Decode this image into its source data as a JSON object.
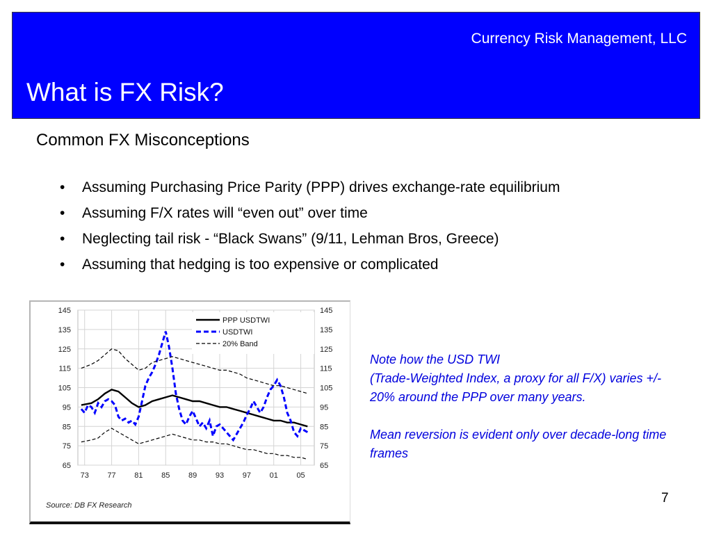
{
  "header": {
    "company": "Currency Risk Management, LLC",
    "title": "What is FX Risk?"
  },
  "subtitle": "Common FX Misconceptions",
  "bullets": [
    "Assuming Purchasing Price Parity (PPP) drives exchange-rate equilibrium",
    "Assuming F/X rates will “even out” over time",
    "Neglecting tail risk - “Black Swans” (9/11, Lehman Bros, Greece)",
    "Assuming that hedging is too expensive or complicated"
  ],
  "note": {
    "line1": "Note how the USD TWI",
    "line2": "(Trade-Weighted Index, a proxy for all F/X) varies +/- 20% around the PPP over many years.",
    "line3": "Mean reversion is evident only over decade-long time frames"
  },
  "page_number": "7",
  "colors": {
    "banner": "#0000ff",
    "usdtwi": "#0000ff",
    "note_text": "#0000dd"
  },
  "chart_data": {
    "type": "line",
    "source": "Source: DB FX Research",
    "x_ticks": [
      "73",
      "77",
      "81",
      "85",
      "89",
      "93",
      "97",
      "01",
      "05"
    ],
    "x_range": [
      1972,
      2007
    ],
    "y_ticks": [
      65,
      75,
      85,
      95,
      105,
      115,
      125,
      135,
      145
    ],
    "y_ticks_right": [
      65,
      75,
      85,
      95,
      105,
      115,
      125,
      135,
      145
    ],
    "ylim": [
      65,
      145
    ],
    "grid": true,
    "legend_position": "top-right",
    "series": [
      {
        "name": "PPP USDTWI",
        "style": "solid",
        "color": "#000000",
        "points": [
          [
            1972.5,
            96
          ],
          [
            1974,
            97
          ],
          [
            1975,
            99
          ],
          [
            1976,
            102
          ],
          [
            1977,
            104
          ],
          [
            1978,
            103
          ],
          [
            1979,
            100
          ],
          [
            1980,
            97
          ],
          [
            1981,
            95
          ],
          [
            1982,
            96
          ],
          [
            1983,
            98
          ],
          [
            1984,
            99
          ],
          [
            1985,
            100
          ],
          [
            1986,
            101
          ],
          [
            1987,
            100
          ],
          [
            1988,
            99
          ],
          [
            1989,
            98
          ],
          [
            1990,
            98
          ],
          [
            1991,
            97
          ],
          [
            1992,
            96
          ],
          [
            1993,
            95
          ],
          [
            1994,
            95
          ],
          [
            1995,
            94
          ],
          [
            1996,
            93
          ],
          [
            1997,
            92
          ],
          [
            1998,
            91
          ],
          [
            1999,
            90
          ],
          [
            2000,
            89
          ],
          [
            2001,
            88
          ],
          [
            2002,
            88
          ],
          [
            2003,
            87
          ],
          [
            2004,
            87
          ],
          [
            2005,
            86
          ],
          [
            2006,
            85
          ]
        ]
      },
      {
        "name": "USDTWI",
        "style": "dashed",
        "color": "#0000ff",
        "points": [
          [
            1972.5,
            94
          ],
          [
            1973,
            92
          ],
          [
            1973.5,
            96
          ],
          [
            1974,
            95
          ],
          [
            1974.5,
            92
          ],
          [
            1975,
            97
          ],
          [
            1975.5,
            95
          ],
          [
            1976,
            98
          ],
          [
            1976.5,
            99
          ],
          [
            1977,
            98
          ],
          [
            1977.5,
            96
          ],
          [
            1978,
            90
          ],
          [
            1978.5,
            88
          ],
          [
            1979,
            89
          ],
          [
            1979.5,
            87
          ],
          [
            1980,
            88
          ],
          [
            1980.5,
            86
          ],
          [
            1981,
            90
          ],
          [
            1981.5,
            98
          ],
          [
            1982,
            106
          ],
          [
            1982.5,
            110
          ],
          [
            1983,
            113
          ],
          [
            1983.5,
            117
          ],
          [
            1984,
            122
          ],
          [
            1984.5,
            128
          ],
          [
            1985,
            134
          ],
          [
            1985.5,
            126
          ],
          [
            1986,
            115
          ],
          [
            1986.5,
            102
          ],
          [
            1987,
            94
          ],
          [
            1987.5,
            88
          ],
          [
            1988,
            86
          ],
          [
            1988.5,
            90
          ],
          [
            1989,
            93
          ],
          [
            1989.5,
            89
          ],
          [
            1990,
            85
          ],
          [
            1990.5,
            87
          ],
          [
            1991,
            84
          ],
          [
            1991.5,
            88
          ],
          [
            1992,
            80
          ],
          [
            1992.5,
            85
          ],
          [
            1993,
            86
          ],
          [
            1993.5,
            84
          ],
          [
            1994,
            82
          ],
          [
            1994.5,
            80
          ],
          [
            1995,
            78
          ],
          [
            1995.5,
            81
          ],
          [
            1996,
            84
          ],
          [
            1996.5,
            87
          ],
          [
            1997,
            91
          ],
          [
            1997.5,
            94
          ],
          [
            1998,
            98
          ],
          [
            1998.5,
            95
          ],
          [
            1999,
            92
          ],
          [
            1999.5,
            95
          ],
          [
            2000,
            100
          ],
          [
            2000.5,
            104
          ],
          [
            2001,
            106
          ],
          [
            2001.5,
            109
          ],
          [
            2002,
            106
          ],
          [
            2002.5,
            100
          ],
          [
            2003,
            92
          ],
          [
            2003.5,
            88
          ],
          [
            2004,
            82
          ],
          [
            2004.5,
            80
          ],
          [
            2005,
            84
          ],
          [
            2005.5,
            83
          ],
          [
            2006,
            82
          ]
        ]
      },
      {
        "name": "20% Band",
        "style": "dashed-thin",
        "color": "#000000",
        "points_upper": [
          [
            1972.5,
            115
          ],
          [
            1974,
            117
          ],
          [
            1975,
            119
          ],
          [
            1976,
            122
          ],
          [
            1977,
            125
          ],
          [
            1978,
            124
          ],
          [
            1979,
            120
          ],
          [
            1980,
            117
          ],
          [
            1981,
            114
          ],
          [
            1982,
            115
          ],
          [
            1983,
            118
          ],
          [
            1984,
            119
          ],
          [
            1985,
            120
          ],
          [
            1986,
            121
          ],
          [
            1987,
            120
          ],
          [
            1988,
            119
          ],
          [
            1989,
            118
          ],
          [
            1990,
            117
          ],
          [
            1991,
            116
          ],
          [
            1992,
            115
          ],
          [
            1993,
            114
          ],
          [
            1994,
            114
          ],
          [
            1995,
            113
          ],
          [
            1996,
            112
          ],
          [
            1997,
            110
          ],
          [
            1998,
            109
          ],
          [
            1999,
            108
          ],
          [
            2000,
            107
          ],
          [
            2001,
            106
          ],
          [
            2002,
            106
          ],
          [
            2003,
            105
          ],
          [
            2004,
            104
          ],
          [
            2005,
            103
          ],
          [
            2006,
            102
          ]
        ],
        "points_lower": [
          [
            1972.5,
            77
          ],
          [
            1974,
            78
          ],
          [
            1975,
            79
          ],
          [
            1976,
            82
          ],
          [
            1977,
            84
          ],
          [
            1978,
            82
          ],
          [
            1979,
            80
          ],
          [
            1980,
            78
          ],
          [
            1981,
            76
          ],
          [
            1982,
            77
          ],
          [
            1983,
            78
          ],
          [
            1984,
            79
          ],
          [
            1985,
            80
          ],
          [
            1986,
            81
          ],
          [
            1987,
            80
          ],
          [
            1988,
            79
          ],
          [
            1989,
            78
          ],
          [
            1990,
            78
          ],
          [
            1991,
            77
          ],
          [
            1992,
            77
          ],
          [
            1993,
            76
          ],
          [
            1994,
            76
          ],
          [
            1995,
            75
          ],
          [
            1996,
            74
          ],
          [
            1997,
            73
          ],
          [
            1998,
            73
          ],
          [
            1999,
            72
          ],
          [
            2000,
            71
          ],
          [
            2001,
            71
          ],
          [
            2002,
            70
          ],
          [
            2003,
            70
          ],
          [
            2004,
            69
          ],
          [
            2005,
            69
          ],
          [
            2006,
            68
          ]
        ]
      }
    ]
  }
}
